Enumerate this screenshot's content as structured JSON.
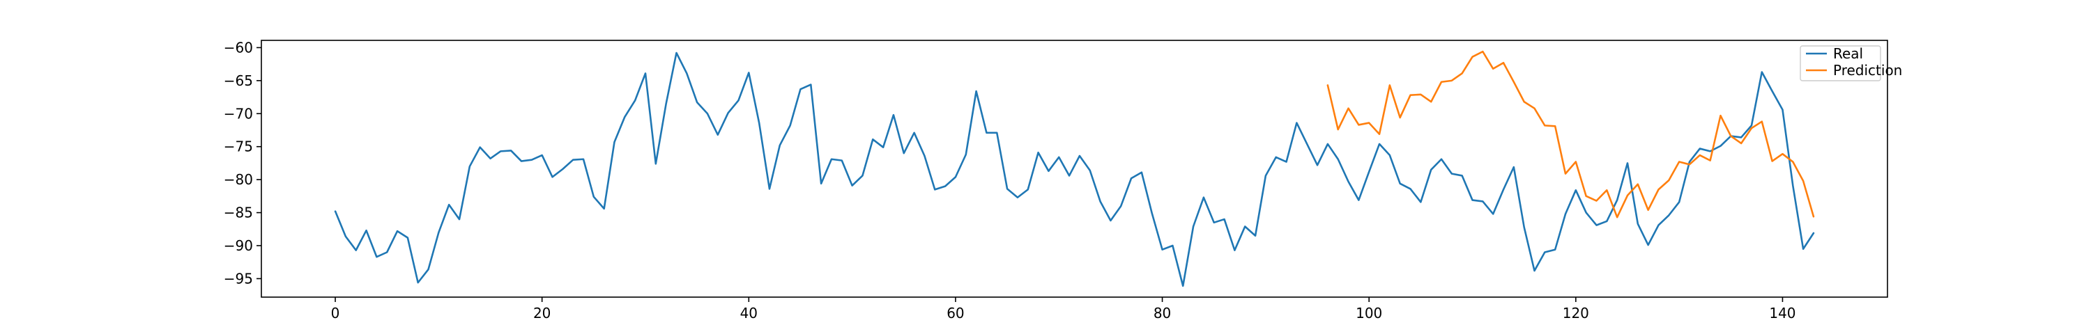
{
  "chart_data": {
    "type": "line",
    "title": "",
    "xlabel": "",
    "ylabel": "",
    "xlim": [
      -7.15,
      150.15
    ],
    "ylim": [
      -97.8,
      -58.9
    ],
    "xticks": [
      0,
      20,
      40,
      60,
      80,
      100,
      120,
      140
    ],
    "yticks": [
      -60,
      -65,
      -70,
      -75,
      -80,
      -85,
      -90,
      -95
    ],
    "grid": false,
    "legend_position": "top-right",
    "series": [
      {
        "name": "Real",
        "color": "#1f77b4",
        "x_start": 0,
        "values": [
          -84.8,
          -88.6,
          -90.7,
          -87.7,
          -91.7,
          -91.0,
          -87.8,
          -88.8,
          -95.6,
          -93.6,
          -88.0,
          -83.8,
          -86.0,
          -78.0,
          -75.1,
          -76.8,
          -75.7,
          -75.6,
          -77.2,
          -77.0,
          -76.3,
          -79.6,
          -78.4,
          -77.0,
          -76.9,
          -82.6,
          -84.4,
          -74.3,
          -70.5,
          -68.0,
          -63.9,
          -77.6,
          -68.5,
          -60.8,
          -63.9,
          -68.3,
          -70.0,
          -73.2,
          -69.9,
          -68.0,
          -63.8,
          -71.4,
          -81.4,
          -74.8,
          -71.8,
          -66.3,
          -65.6,
          -80.6,
          -76.9,
          -77.1,
          -80.9,
          -79.4,
          -73.9,
          -75.1,
          -70.2,
          -76.0,
          -72.9,
          -76.4,
          -81.5,
          -81.0,
          -79.6,
          -76.2,
          -66.6,
          -72.9,
          -72.9,
          -81.4,
          -82.7,
          -81.5,
          -75.9,
          -78.7,
          -76.6,
          -79.4,
          -76.4,
          -78.6,
          -83.3,
          -86.2,
          -84.0,
          -79.8,
          -78.9,
          -85.1,
          -90.6,
          -90.0,
          -96.1,
          -87.1,
          -82.7,
          -86.5,
          -86.0,
          -90.7,
          -87.1,
          -88.5,
          -79.4,
          -76.6,
          -77.3,
          -71.4,
          -74.6,
          -77.8,
          -74.6,
          -76.9,
          -80.3,
          -83.1,
          -78.8,
          -74.6,
          -76.3,
          -80.6,
          -81.4,
          -83.4,
          -78.5,
          -76.9,
          -79.1,
          -79.4,
          -83.1,
          -83.3,
          -85.2,
          -81.5,
          -78.1,
          -87.2,
          -93.8,
          -91.0,
          -90.6,
          -85.2,
          -81.6,
          -85.0,
          -86.9,
          -86.3,
          -83.1,
          -77.5,
          -86.7,
          -89.9,
          -86.9,
          -85.4,
          -83.4,
          -77.3,
          -75.3,
          -75.7,
          -74.9,
          -73.4,
          -73.6,
          -71.8,
          -63.7,
          -66.6,
          -69.4,
          -80.9,
          -90.5,
          -88.1
        ]
      },
      {
        "name": "Prediction",
        "color": "#ff7f0e",
        "x_start": 96,
        "values": [
          -65.7,
          -72.4,
          -69.2,
          -71.7,
          -71.4,
          -73.1,
          -65.7,
          -70.6,
          -67.2,
          -67.1,
          -68.2,
          -65.2,
          -65.0,
          -63.9,
          -61.4,
          -60.6,
          -63.2,
          -62.3,
          -65.2,
          -68.2,
          -69.2,
          -71.8,
          -71.9,
          -79.1,
          -77.3,
          -82.5,
          -83.2,
          -81.6,
          -85.7,
          -82.4,
          -80.7,
          -84.6,
          -81.5,
          -80.1,
          -77.3,
          -77.7,
          -76.3,
          -77.1,
          -70.3,
          -73.4,
          -74.5,
          -72.2,
          -71.2,
          -77.2,
          -76.1,
          -77.3,
          -80.2,
          -85.6
        ]
      }
    ]
  }
}
